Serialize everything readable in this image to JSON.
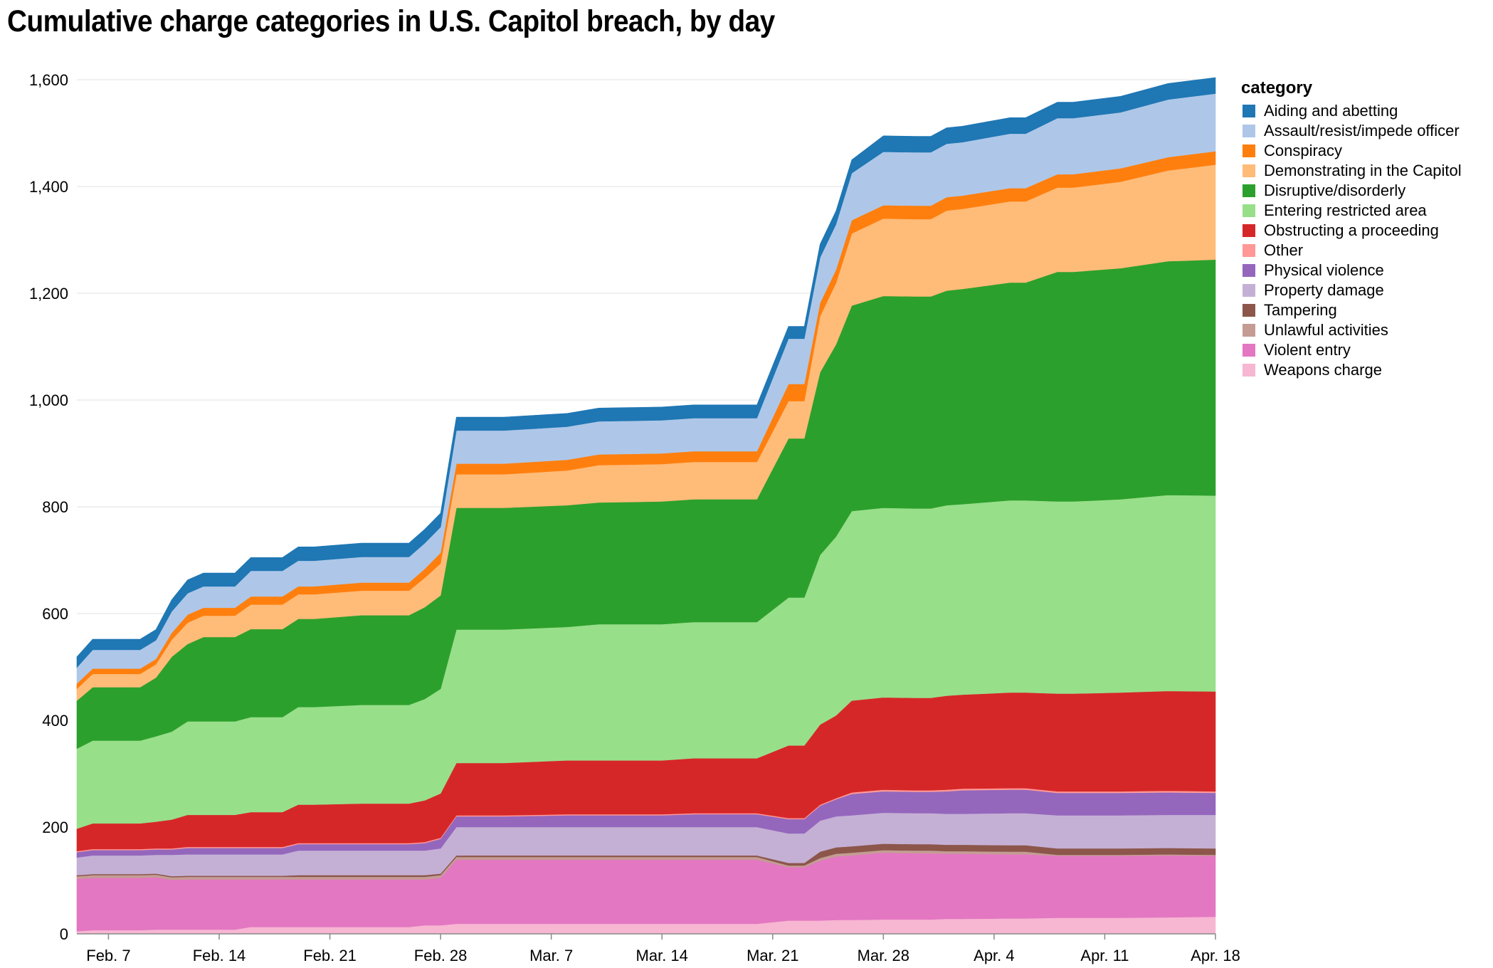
{
  "chart_data": {
    "type": "area",
    "stacked": true,
    "title": "Cumulative charge categories in U.S. Capitol breach, by day",
    "xlabel": "",
    "ylabel": "",
    "ylim": [
      0,
      1600
    ],
    "y_ticks": [
      0,
      200,
      400,
      600,
      800,
      1000,
      1200,
      1400,
      1600
    ],
    "y_tick_labels": [
      "0",
      "200",
      "400",
      "600",
      "800",
      "1,000",
      "1,200",
      "1,400",
      "1,600"
    ],
    "x_ticks": [
      "2021-02-07",
      "2021-02-14",
      "2021-02-21",
      "2021-02-28",
      "2021-03-07",
      "2021-03-14",
      "2021-03-21",
      "2021-03-28",
      "2021-04-04",
      "2021-04-11",
      "2021-04-18"
    ],
    "x_tick_labels": [
      "Feb. 7",
      "Feb. 14",
      "Feb. 21",
      "Feb. 28",
      "Mar. 7",
      "Mar. 14",
      "Mar. 21",
      "Mar. 28",
      "Apr. 4",
      "Apr. 11",
      "Apr. 18"
    ],
    "grid": "horizontal",
    "legend_title": "category",
    "legend_position": "right",
    "dates": [
      "2021-02-05",
      "2021-02-06",
      "2021-02-09",
      "2021-02-10",
      "2021-02-11",
      "2021-02-12",
      "2021-02-13",
      "2021-02-15",
      "2021-02-16",
      "2021-02-18",
      "2021-02-19",
      "2021-02-20",
      "2021-02-23",
      "2021-02-24",
      "2021-02-26",
      "2021-02-27",
      "2021-02-28",
      "2021-03-01",
      "2021-03-04",
      "2021-03-08",
      "2021-03-10",
      "2021-03-14",
      "2021-03-16",
      "2021-03-18",
      "2021-03-20",
      "2021-03-22",
      "2021-03-23",
      "2021-03-24",
      "2021-03-25",
      "2021-03-26",
      "2021-03-28",
      "2021-03-30",
      "2021-03-31",
      "2021-04-01",
      "2021-04-02",
      "2021-04-05",
      "2021-04-06",
      "2021-04-08",
      "2021-04-09",
      "2021-04-12",
      "2021-04-15",
      "2021-04-18"
    ],
    "series": [
      {
        "name": "Weapons charge",
        "color": "#f7b6d2",
        "values": [
          5,
          7,
          7,
          8,
          8,
          8,
          8,
          8,
          13,
          13,
          13,
          13,
          13,
          13,
          13,
          16,
          16,
          19,
          19,
          19,
          19,
          19,
          19,
          19,
          19,
          25,
          25,
          25,
          26,
          26,
          27,
          27,
          27,
          28,
          28,
          29,
          29,
          30,
          30,
          30,
          31,
          32
        ]
      },
      {
        "name": "Violent entry",
        "color": "#e377c2",
        "values": [
          98,
          98,
          98,
          98,
          93,
          94,
          94,
          94,
          89,
          89,
          89,
          89,
          89,
          89,
          89,
          86,
          89,
          120,
          120,
          120,
          120,
          120,
          120,
          120,
          120,
          100,
          100,
          112,
          119,
          121,
          125,
          124,
          124,
          122,
          122,
          120,
          120,
          116,
          116,
          116,
          116,
          114
        ]
      },
      {
        "name": "Unlawful activities",
        "color": "#c49c94",
        "values": [
          5,
          5,
          5,
          5,
          5,
          5,
          5,
          5,
          5,
          5,
          5,
          5,
          5,
          5,
          5,
          5,
          5,
          5,
          5,
          5,
          5,
          5,
          5,
          5,
          5,
          3,
          3,
          5,
          5,
          5,
          5,
          5,
          5,
          5,
          5,
          5,
          5,
          2,
          2,
          2,
          2,
          2
        ]
      },
      {
        "name": "Tampering",
        "color": "#8c564b",
        "values": [
          2,
          2,
          2,
          2,
          2,
          2,
          2,
          2,
          2,
          2,
          3,
          3,
          3,
          3,
          3,
          3,
          3,
          3,
          3,
          3,
          3,
          3,
          3,
          3,
          3,
          5,
          5,
          12,
          12,
          12,
          12,
          12,
          12,
          12,
          12,
          12,
          12,
          12,
          12,
          12,
          12,
          12
        ]
      },
      {
        "name": "Property damage",
        "color": "#c5b0d5",
        "values": [
          33,
          35,
          35,
          35,
          40,
          40,
          40,
          40,
          40,
          40,
          46,
          46,
          46,
          46,
          46,
          46,
          47,
          53,
          53,
          53,
          53,
          53,
          53,
          53,
          53,
          55,
          55,
          58,
          58,
          58,
          58,
          58,
          58,
          58,
          58,
          60,
          60,
          62,
          62,
          62,
          62,
          63
        ]
      },
      {
        "name": "Physical violence",
        "color": "#9467bd",
        "values": [
          10,
          10,
          10,
          10,
          10,
          12,
          12,
          12,
          12,
          12,
          12,
          12,
          12,
          12,
          12,
          14,
          18,
          20,
          20,
          22,
          22,
          22,
          24,
          24,
          24,
          27,
          27,
          28,
          32,
          40,
          40,
          40,
          40,
          42,
          44,
          44,
          44,
          42,
          42,
          42,
          42,
          41
        ]
      },
      {
        "name": "Other",
        "color": "#ff9896",
        "values": [
          2,
          2,
          2,
          2,
          2,
          2,
          2,
          2,
          2,
          2,
          2,
          2,
          2,
          2,
          2,
          2,
          2,
          2,
          2,
          2,
          2,
          2,
          2,
          2,
          2,
          2,
          2,
          2,
          2,
          3,
          3,
          3,
          3,
          3,
          3,
          3,
          3,
          3,
          3,
          3,
          3,
          3
        ]
      },
      {
        "name": "Obstructing a proceeding",
        "color": "#d62728",
        "values": [
          42,
          48,
          48,
          50,
          54,
          60,
          60,
          60,
          65,
          65,
          72,
          72,
          74,
          74,
          74,
          78,
          83,
          98,
          98,
          101,
          101,
          101,
          103,
          103,
          103,
          136,
          136,
          150,
          155,
          172,
          173,
          173,
          173,
          176,
          176,
          179,
          179,
          183,
          183,
          185,
          187,
          187
        ]
      },
      {
        "name": "Entering restricted area",
        "color": "#98df8a",
        "values": [
          150,
          155,
          155,
          160,
          165,
          175,
          175,
          175,
          178,
          178,
          183,
          183,
          185,
          185,
          185,
          190,
          196,
          250,
          250,
          250,
          255,
          255,
          255,
          255,
          255,
          277,
          277,
          318,
          335,
          355,
          355,
          355,
          355,
          357,
          357,
          360,
          360,
          360,
          360,
          362,
          367,
          367
        ]
      },
      {
        "name": "Disruptive/disorderly",
        "color": "#2ca02c",
        "values": [
          90,
          100,
          100,
          110,
          140,
          145,
          158,
          158,
          165,
          165,
          165,
          165,
          168,
          168,
          168,
          172,
          175,
          228,
          228,
          228,
          228,
          230,
          230,
          230,
          230,
          298,
          298,
          342,
          360,
          385,
          397,
          397,
          397,
          402,
          403,
          408,
          408,
          430,
          430,
          433,
          438,
          442
        ]
      },
      {
        "name": "Demonstrating in the Capitol",
        "color": "#ffbb78",
        "values": [
          22,
          25,
          25,
          25,
          32,
          40,
          40,
          40,
          46,
          46,
          46,
          46,
          46,
          46,
          46,
          55,
          60,
          63,
          63,
          65,
          70,
          70,
          70,
          70,
          70,
          70,
          70,
          105,
          115,
          135,
          145,
          145,
          145,
          150,
          150,
          152,
          152,
          158,
          158,
          162,
          170,
          178
        ]
      },
      {
        "name": "Conspiracy",
        "color": "#ff7f0e",
        "values": [
          10,
          10,
          10,
          10,
          13,
          15,
          15,
          15,
          15,
          15,
          15,
          15,
          15,
          15,
          15,
          17,
          20,
          20,
          20,
          20,
          20,
          20,
          20,
          20,
          20,
          32,
          32,
          25,
          25,
          25,
          25,
          25,
          25,
          25,
          25,
          25,
          25,
          25,
          25,
          25,
          25,
          25
        ]
      },
      {
        "name": "Assault/resist/impede officer",
        "color": "#aec7e8",
        "values": [
          30,
          35,
          35,
          35,
          40,
          40,
          40,
          40,
          48,
          48,
          48,
          48,
          48,
          48,
          48,
          48,
          48,
          62,
          62,
          62,
          62,
          62,
          62,
          62,
          62,
          85,
          85,
          85,
          85,
          88,
          100,
          100,
          100,
          100,
          100,
          102,
          102,
          105,
          105,
          105,
          108,
          108
        ]
      },
      {
        "name": "Aiding and abetting",
        "color": "#1f77b4",
        "values": [
          20,
          20,
          20,
          20,
          22,
          25,
          25,
          25,
          25,
          25,
          26,
          26,
          26,
          26,
          26,
          26,
          26,
          25,
          25,
          25,
          25,
          25,
          25,
          25,
          25,
          23,
          23,
          25,
          25,
          25,
          30,
          30,
          30,
          30,
          30,
          30,
          30,
          30,
          30,
          30,
          30,
          30
        ]
      }
    ]
  }
}
